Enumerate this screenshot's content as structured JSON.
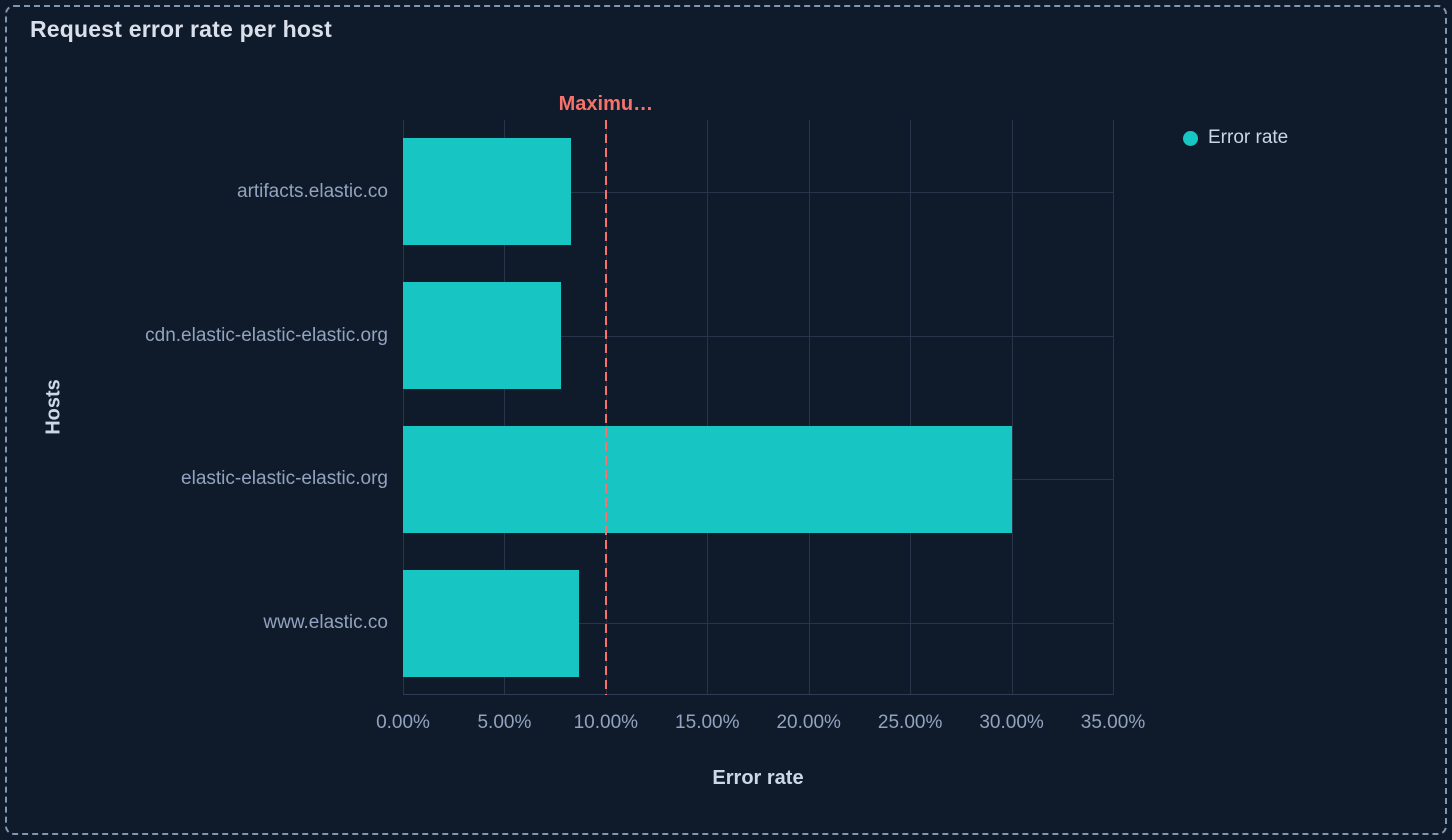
{
  "panel": {
    "title": "Request error rate per host"
  },
  "legend": {
    "position": "right",
    "items": [
      {
        "label": "Error rate",
        "color": "#17c5c2",
        "marker": "circle-icon"
      }
    ]
  },
  "threshold": {
    "label": "Maximu…",
    "value": 10,
    "color": "#f6726a",
    "style": "dashed"
  },
  "axes": {
    "x": {
      "title": "Error rate",
      "tick_labels": [
        "0.00%",
        "5.00%",
        "10.00%",
        "15.00%",
        "20.00%",
        "25.00%",
        "30.00%",
        "35.00%"
      ],
      "tick_values": [
        0,
        5,
        10,
        15,
        20,
        25,
        30,
        35
      ],
      "min": 0,
      "max": 35
    },
    "y": {
      "title": "Hosts",
      "categories": [
        "artifacts.elastic.co",
        "cdn.elastic-elastic-elastic.org",
        "elastic-elastic-elastic.org",
        "www.elastic.co"
      ]
    }
  },
  "chart_data": {
    "type": "bar",
    "orientation": "horizontal",
    "title": "Request error rate per host",
    "categories": [
      "artifacts.elastic.co",
      "cdn.elastic-elastic-elastic.org",
      "elastic-elastic-elastic.org",
      "www.elastic.co"
    ],
    "series": [
      {
        "name": "Error rate",
        "color": "#17c5c2",
        "values": [
          8.3,
          7.8,
          30.0,
          8.7
        ]
      }
    ],
    "xlabel": "Error rate",
    "ylabel": "Hosts",
    "xlim": [
      0,
      35
    ],
    "x_tick_format": "0.00%",
    "grid": true,
    "legend_position": "right",
    "annotations": [
      {
        "type": "vline",
        "x": 10,
        "label": "Maximu…",
        "line_style": "dashed",
        "color": "#f6726a"
      }
    ]
  },
  "colors": {
    "background": "#0f1a2a",
    "panel_border": "#8096b5",
    "gridline": "#28344a",
    "axis_line": "#2e3c55",
    "bar": "#17c5c2",
    "threshold": "#f6726a",
    "tick_text": "#93a3bf",
    "title_text": "#d9e0ec",
    "axis_title_text": "#cdd7e6"
  }
}
